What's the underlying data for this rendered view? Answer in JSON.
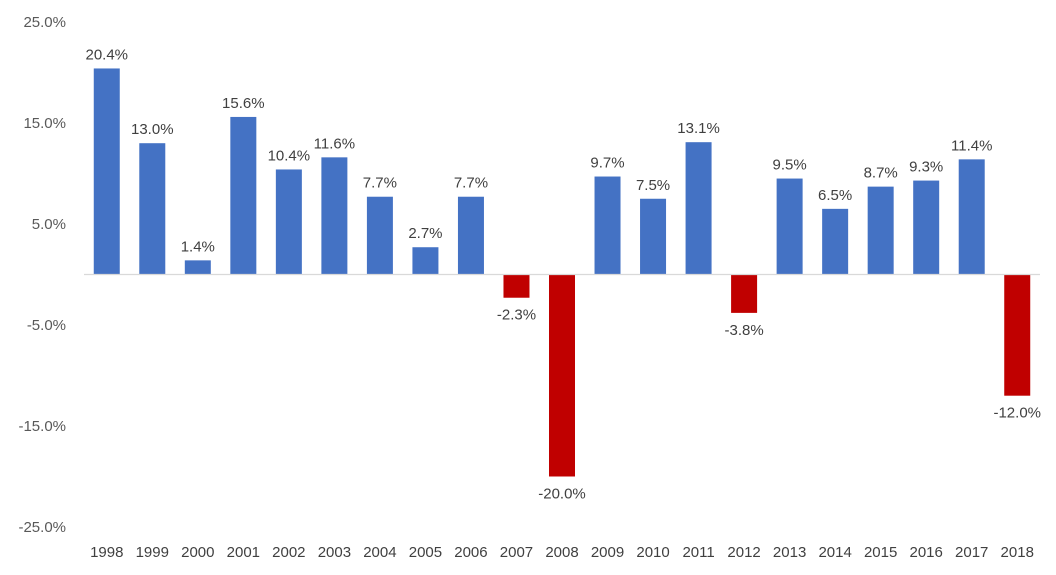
{
  "chart_data": {
    "type": "bar",
    "title": "",
    "xlabel": "",
    "ylabel": "",
    "categories": [
      "1998",
      "1999",
      "2000",
      "2001",
      "2002",
      "2003",
      "2004",
      "2005",
      "2006",
      "2007",
      "2008",
      "2009",
      "2010",
      "2011",
      "2012",
      "2013",
      "2014",
      "2015",
      "2016",
      "2017",
      "2018"
    ],
    "values": [
      20.4,
      13.0,
      1.4,
      15.6,
      10.4,
      11.6,
      7.7,
      2.7,
      7.7,
      -2.3,
      -20.0,
      9.7,
      7.5,
      13.1,
      -3.8,
      9.5,
      6.5,
      8.7,
      9.3,
      11.4,
      -12.0
    ],
    "data_labels": [
      "20.4%",
      "13.0%",
      "1.4%",
      "15.6%",
      "10.4%",
      "11.6%",
      "7.7%",
      "2.7%",
      "7.7%",
      "-2.3%",
      "-20.0%",
      "9.7%",
      "7.5%",
      "13.1%",
      "-3.8%",
      "9.5%",
      "6.5%",
      "8.7%",
      "9.3%",
      "11.4%",
      "-12.0%"
    ],
    "y_ticks": [
      25,
      15,
      5,
      -5,
      -15,
      -25
    ],
    "y_tick_labels": [
      "25.0%",
      "15.0%",
      "5.0%",
      "-5.0%",
      "-15.0%",
      "-25.0%"
    ],
    "ylim": [
      -25,
      25
    ],
    "grid": false,
    "legend": "none",
    "colors": {
      "positive": "#4472C4",
      "negative": "#C00000",
      "axis": "#D9D9D9"
    }
  }
}
